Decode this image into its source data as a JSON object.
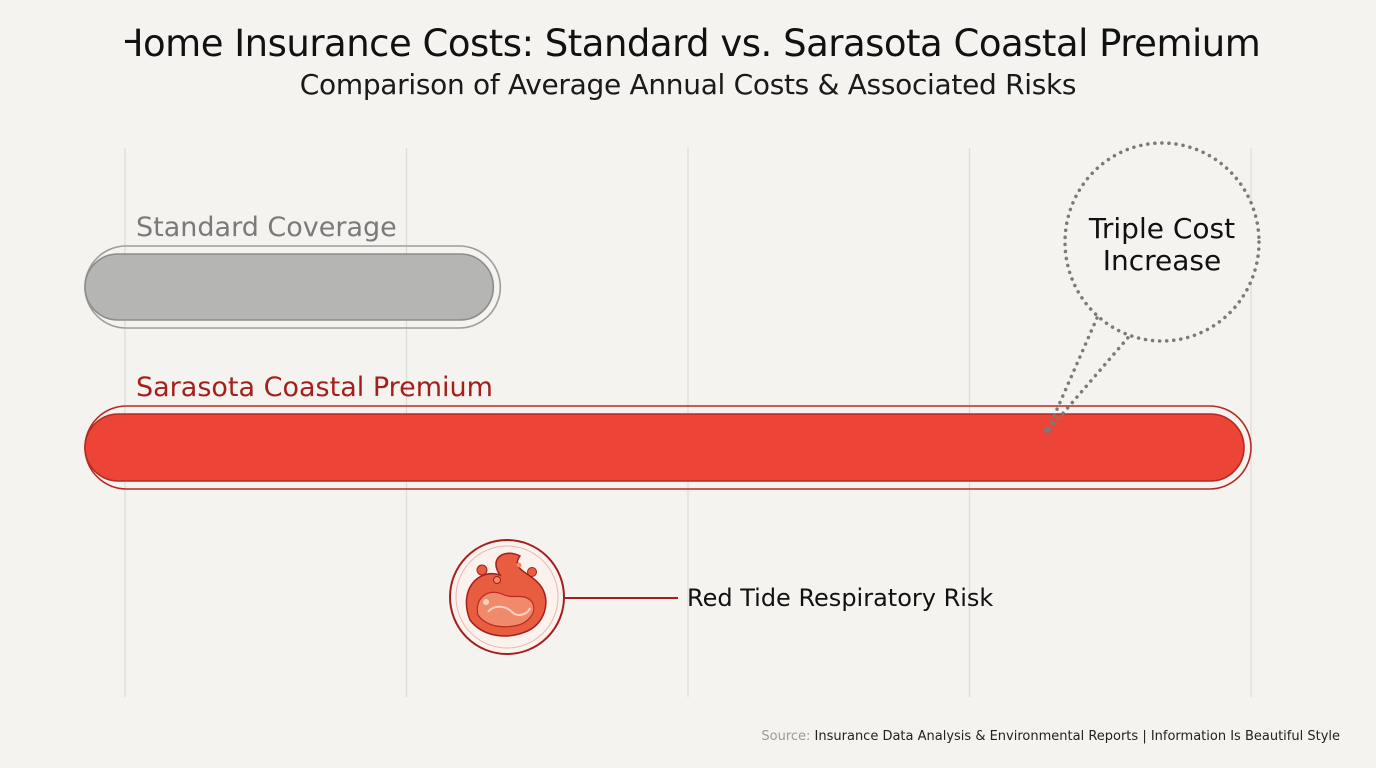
{
  "title": "Home Insurance Costs: Standard vs. Sarasota Coastal Premium",
  "subtitle": "Comparison of Average Annual Costs & Associated Risks",
  "source_label": "Source:",
  "source_text": "Insurance Data Analysis & Environmental Reports | Information Is Beautiful Style",
  "colors": {
    "standard": "#b5b5b3",
    "premium": "#ec4437",
    "premium_dark": "#a31f1c",
    "grid": "#dcdcd8"
  },
  "chart_data": {
    "type": "bar",
    "orientation": "horizontal",
    "categories": [
      "Standard Coverage",
      "Sarasota Coastal Premium"
    ],
    "values": [
      1,
      3
    ],
    "xlim": [
      0,
      3
    ],
    "grid": true,
    "callout": "Triple Cost Increase",
    "annotation": "Red Tide Respiratory Risk"
  }
}
